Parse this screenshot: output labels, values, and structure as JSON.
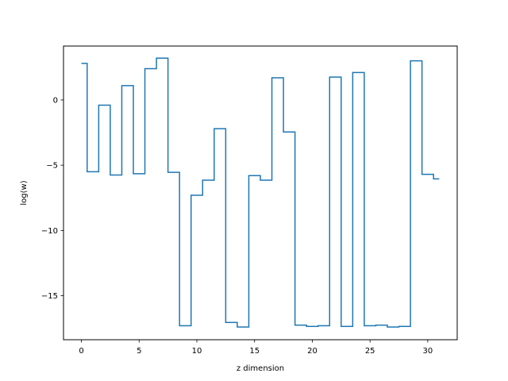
{
  "chart_data": {
    "type": "line",
    "drawstyle": "steps-mid",
    "title": "",
    "xlabel": "z dimension",
    "ylabel": "log(w)",
    "xlim": [
      -1.55,
      32.55
    ],
    "ylim": [
      -18.37,
      4.13
    ],
    "grid": false,
    "line_color": "#1f77b4",
    "x_ticks": [
      0,
      5,
      10,
      15,
      20,
      25,
      30
    ],
    "x_tick_labels": [
      "0",
      "5",
      "10",
      "15",
      "20",
      "25",
      "30"
    ],
    "y_ticks": [
      0,
      -5,
      -10,
      -15
    ],
    "y_tick_labels": [
      "0",
      "−5",
      "−10",
      "−15"
    ],
    "series": [
      {
        "x": [
          0,
          1,
          2,
          3,
          4,
          5,
          6,
          7,
          8,
          9,
          10,
          11,
          12,
          13,
          14,
          15,
          16,
          17,
          18,
          19,
          20,
          21,
          22,
          23,
          24,
          25,
          26,
          27,
          28,
          29,
          30,
          31
        ],
        "values": [
          2.8,
          -5.5,
          -0.4,
          -5.75,
          1.1,
          -5.65,
          2.4,
          3.2,
          -5.55,
          -17.3,
          -7.3,
          -6.15,
          -2.2,
          -17.05,
          -17.4,
          -5.8,
          -6.15,
          1.7,
          -2.45,
          -17.25,
          -17.35,
          -17.3,
          1.75,
          -17.35,
          2.1,
          -17.3,
          -17.25,
          -17.4,
          -17.35,
          3.0,
          -5.7,
          -6.05
        ]
      }
    ]
  }
}
